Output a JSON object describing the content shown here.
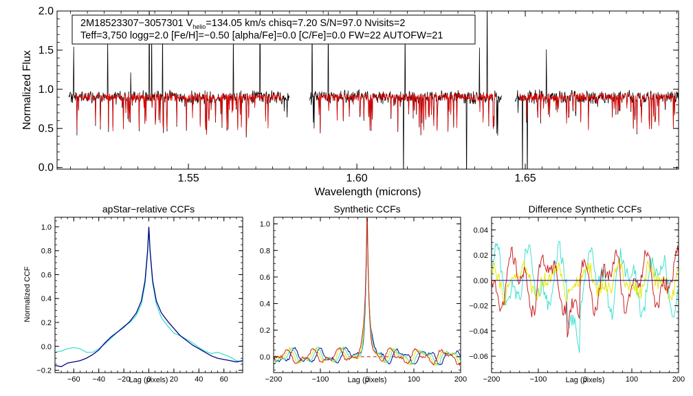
{
  "chart_data": [
    {
      "type": "line",
      "id": "spectrum",
      "title": "",
      "xlabel": "Wavelength (microns)",
      "ylabel": "Normalized Flux",
      "xlim": [
        1.511,
        1.6955
      ],
      "ylim": [
        -0.02,
        2.0
      ],
      "xticks": [
        1.55,
        1.6,
        1.65
      ],
      "xtick_labels": [
        "1.55",
        "1.60",
        "1.65"
      ],
      "yticks": [
        0.0,
        0.5,
        1.0,
        1.5,
        2.0
      ],
      "ytick_labels": [
        "0.0",
        "0.5",
        "1.0",
        "1.5",
        "2.0"
      ],
      "chip_ranges": [
        [
          1.5145,
          1.58
        ],
        [
          1.586,
          1.643
        ],
        [
          1.647,
          1.696
        ]
      ],
      "continuum_level": 0.97,
      "annotation": {
        "line1_id": "2M18523307−3057301",
        "line1_v": "V",
        "line1_v_sub": "helio",
        "line1_rest": "=134.05 km/s  chisq=7.20  S/N=97.0  Nvisits=2",
        "line2": "Teff=3,750 logg=2.0 [Fe/H]=−0.50 [alpha/Fe]=0.0 [C/Fe]=0.0 FW=22 AUTOFW=21"
      },
      "series": [
        {
          "name": "observed",
          "color": "#000000"
        },
        {
          "name": "model",
          "color": "#e00000"
        }
      ]
    },
    {
      "type": "line",
      "id": "apstar",
      "title": "apStar−relative CCFs",
      "xlabel": "Lag (pixels)",
      "ylabel": "Normalized CCF",
      "xlim": [
        -75,
        75
      ],
      "ylim": [
        -0.22,
        1.08
      ],
      "xticks": [
        -60,
        -40,
        -20,
        0,
        20,
        40,
        60
      ],
      "xtick_labels": [
        "−60",
        "−40",
        "−20",
        "0",
        "20",
        "40",
        "60"
      ],
      "yticks": [
        -0.2,
        0.0,
        0.2,
        0.4,
        0.6,
        0.8,
        1.0
      ],
      "ytick_labels": [
        "−0.2",
        "0.0",
        "0.2",
        "0.4",
        "0.6",
        "0.8",
        "1.0"
      ],
      "series": [
        {
          "name": "visit 1",
          "color": "#000080",
          "x": [
            -75,
            -70,
            -65,
            -60,
            -55,
            -50,
            -45,
            -40,
            -35,
            -30,
            -25,
            -20,
            -15,
            -10,
            -6,
            -3,
            -1,
            0,
            1,
            3,
            6,
            10,
            15,
            20,
            25,
            30,
            35,
            40,
            45,
            50,
            55,
            60,
            65,
            70,
            75
          ],
          "y": [
            -0.16,
            -0.17,
            -0.14,
            -0.13,
            -0.12,
            -0.1,
            -0.07,
            -0.03,
            0.03,
            0.08,
            0.12,
            0.16,
            0.21,
            0.28,
            0.38,
            0.55,
            0.8,
            1.0,
            0.8,
            0.55,
            0.38,
            0.28,
            0.21,
            0.15,
            0.09,
            0.05,
            0.01,
            -0.02,
            -0.05,
            -0.08,
            -0.1,
            -0.11,
            -0.12,
            -0.13,
            -0.12
          ]
        },
        {
          "name": "visit 2",
          "color": "#40e0d0",
          "x": [
            -75,
            -70,
            -65,
            -60,
            -55,
            -50,
            -45,
            -40,
            -35,
            -30,
            -25,
            -20,
            -15,
            -10,
            -6,
            -3,
            -1,
            0,
            1,
            3,
            6,
            10,
            15,
            20,
            25,
            30,
            35,
            40,
            45,
            50,
            55,
            60,
            65,
            70,
            75
          ],
          "y": [
            -0.05,
            -0.04,
            -0.02,
            -0.01,
            -0.02,
            -0.05,
            -0.05,
            -0.02,
            0.02,
            0.07,
            0.12,
            0.17,
            0.2,
            0.26,
            0.35,
            0.52,
            0.78,
            0.98,
            0.79,
            0.53,
            0.35,
            0.24,
            0.17,
            0.11,
            0.09,
            0.06,
            0.03,
            -0.01,
            -0.04,
            -0.06,
            -0.05,
            -0.07,
            -0.09,
            -0.12,
            -0.13
          ]
        }
      ]
    },
    {
      "type": "line",
      "id": "synthetic",
      "title": "Synthetic CCFs",
      "xlabel": "Lag (pixels)",
      "ylabel": "",
      "xlim": [
        -200,
        200
      ],
      "ylim": [
        -0.12,
        1.05
      ],
      "xticks": [
        -200,
        -100,
        0,
        100,
        200
      ],
      "xtick_labels": [
        "−200",
        "−100",
        "0",
        "100",
        "200"
      ],
      "yticks": [
        0.0,
        0.2,
        0.4,
        0.6,
        0.8,
        1.0
      ],
      "ytick_labels": [
        "0.0",
        "0.2",
        "0.4",
        "0.6",
        "0.8",
        "1.0"
      ],
      "zero_line": {
        "y": 0.0,
        "style": "dashed",
        "color": "#a02020",
        "x_from": -40,
        "x_to": 60
      },
      "series": [
        {
          "name": "ccf 1",
          "color": "#000080"
        },
        {
          "name": "ccf 2",
          "color": "#40e0d0"
        },
        {
          "name": "ccf 3",
          "color": "#e6e600"
        },
        {
          "name": "ccf 4",
          "color": "#c82020"
        }
      ]
    },
    {
      "type": "line",
      "id": "difference",
      "title": "Difference Synthetic CCFs",
      "xlabel": "Lag (pixels)",
      "ylabel": "",
      "xlim": [
        -200,
        200
      ],
      "ylim": [
        -0.073,
        0.05
      ],
      "xticks": [
        -200,
        -100,
        0,
        100,
        200
      ],
      "xtick_labels": [
        "−200",
        "−100",
        "0",
        "100",
        "200"
      ],
      "yticks": [
        -0.06,
        -0.04,
        -0.02,
        0.0,
        0.02,
        0.04
      ],
      "ytick_labels": [
        "−0.06",
        "−0.04",
        "−0.02",
        "0.00",
        "0.02",
        "0.04"
      ],
      "zero_line": {
        "y": 0.0,
        "style": "solid",
        "color": "#000080"
      },
      "series": [
        {
          "name": "diff 1",
          "color": "#40e0d0"
        },
        {
          "name": "diff 2",
          "color": "#e6e600"
        },
        {
          "name": "diff 3",
          "color": "#c82020"
        }
      ]
    }
  ]
}
